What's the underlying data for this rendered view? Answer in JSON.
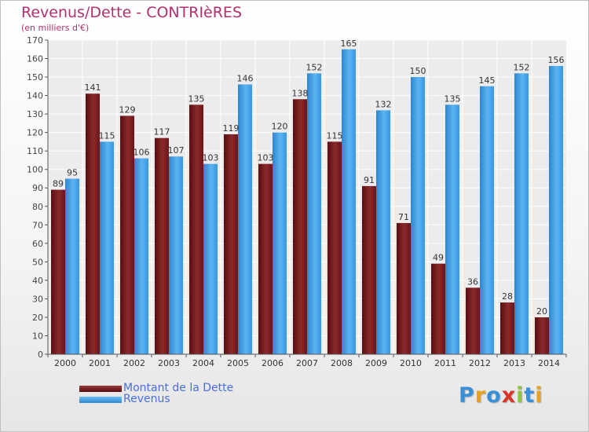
{
  "header": {
    "title": "Revenus/Dette - CONTRIèRES",
    "subtitle": "(en milliers d'€)"
  },
  "legend": {
    "items": [
      {
        "label": "Montant de la Dette",
        "color": "#7a1a1c"
      },
      {
        "label": "Revenus",
        "color": "#3f9ee6"
      }
    ]
  },
  "logo": {
    "text": "Proxiti",
    "colors": [
      "#3a8fd9",
      "#e8a21c",
      "#3a8fd9",
      "#d9342b",
      "#8cc63f",
      "#3a8fd9",
      "#e8a21c"
    ]
  },
  "chart_data": {
    "type": "bar",
    "categories": [
      "2000",
      "2001",
      "2002",
      "2003",
      "2004",
      "2005",
      "2006",
      "2007",
      "2008",
      "2009",
      "2010",
      "2011",
      "2012",
      "2013",
      "2014"
    ],
    "series": [
      {
        "name": "Montant de la Dette",
        "color": "#7a1a1c",
        "values": [
          89,
          141,
          129,
          117,
          135,
          119,
          103,
          138,
          115,
          91,
          71,
          49,
          36,
          28,
          20
        ]
      },
      {
        "name": "Revenus",
        "color": "#3f9ee6",
        "values": [
          95,
          115,
          106,
          107,
          103,
          146,
          120,
          152,
          165,
          132,
          150,
          135,
          145,
          152,
          156
        ]
      }
    ],
    "ylim": [
      0,
      170
    ],
    "yticks": [
      0,
      10,
      20,
      30,
      40,
      50,
      60,
      70,
      80,
      90,
      100,
      110,
      120,
      130,
      140,
      150,
      160,
      170
    ],
    "grid": true,
    "title": "Revenus/Dette - CONTRIèRES",
    "subtitle": "(en milliers d'€)",
    "legend_position": "bottom-left"
  }
}
